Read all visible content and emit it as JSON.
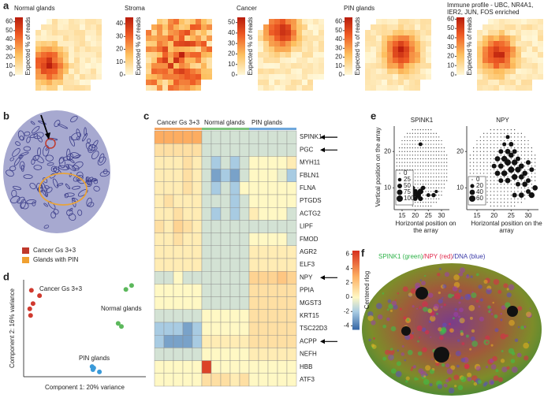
{
  "panel_labels": [
    "a",
    "b",
    "c",
    "d",
    "e",
    "f"
  ],
  "panel_a": {
    "colorbar_label": "Expected % of reads",
    "maps": [
      {
        "title": "Normal glands",
        "clim": [
          0,
          65
        ],
        "ticks": [
          0,
          10,
          20,
          30,
          40,
          50,
          60
        ]
      },
      {
        "title": "Stroma",
        "clim": [
          0,
          45
        ],
        "ticks": [
          0,
          10,
          20,
          30,
          40
        ]
      },
      {
        "title": "Cancer",
        "clim": [
          0,
          55
        ],
        "ticks": [
          0,
          10,
          20,
          30,
          40,
          50
        ]
      },
      {
        "title": "PIN glands",
        "clim": [
          0,
          65
        ],
        "ticks": [
          0,
          10,
          20,
          30,
          40,
          50,
          60
        ]
      },
      {
        "title": "Immune profile - UBC, NR4A1, IER2, JUN, FOS enriched",
        "clim": [
          0,
          62
        ],
        "ticks": [
          0,
          10,
          20,
          30,
          40,
          50,
          60
        ]
      }
    ]
  },
  "panel_b": {
    "legend": [
      {
        "label": "Cancer Gs 3+3",
        "color": "#c0392b"
      },
      {
        "label": "Glands with PIN",
        "color": "#f0a030"
      }
    ]
  },
  "panel_c": {
    "column_groups": [
      {
        "name": "Cancer Gs 3+3",
        "color": "#f4a460"
      },
      {
        "name": "Normal glands",
        "color": "#7cc47c"
      },
      {
        "name": "PIN glands",
        "color": "#6fa8dc"
      }
    ],
    "genes": [
      "SPINK1",
      "PGC",
      "MYH11",
      "FBLN1",
      "FLNA",
      "PTGDS",
      "ACTG2",
      "LIPF",
      "FMOD",
      "AGR2",
      "ELF3",
      "NPY",
      "PPIA",
      "MGST3",
      "KRT15",
      "TSC22D3",
      "ACPP",
      "NEFH",
      "HBB",
      "ATF3"
    ],
    "values": [
      [
        3,
        3,
        3,
        3,
        3,
        -1,
        -1,
        -1,
        -1,
        -1,
        -1,
        -1,
        -1,
        -1,
        -1
      ],
      [
        1,
        1,
        1,
        1,
        1,
        -1,
        -1,
        -1,
        -1,
        -1,
        -1,
        -1,
        -1,
        -1,
        -1
      ],
      [
        0.5,
        0.5,
        0.5,
        1,
        0.5,
        -1,
        -2,
        -1,
        -2,
        -1,
        0,
        0,
        0,
        0,
        0.5
      ],
      [
        0.5,
        0.5,
        0.5,
        1,
        0.5,
        -1,
        -3,
        -2,
        -3,
        -1,
        0,
        0,
        0,
        -0.5,
        -2
      ],
      [
        0.5,
        0.5,
        0.5,
        1,
        0.5,
        -1,
        -2,
        -1,
        -2,
        0,
        0,
        0,
        0,
        0,
        0
      ],
      [
        0.5,
        1,
        0.5,
        0.5,
        0.5,
        -1,
        -1,
        -1,
        -2,
        -1,
        0,
        0,
        0,
        0,
        0
      ],
      [
        0.5,
        0.5,
        1,
        0.5,
        0.5,
        -1,
        -2,
        -1,
        -2,
        -1,
        0.5,
        0,
        0,
        0,
        -1
      ],
      [
        1,
        0.5,
        1.5,
        1,
        0.5,
        -1,
        -1,
        -1,
        -1,
        -1,
        -1,
        -1,
        -1,
        -1,
        -1
      ],
      [
        0.5,
        0.5,
        1,
        0.5,
        0.5,
        -1,
        -1,
        -1,
        -1,
        -1,
        0,
        0,
        0,
        0,
        -1
      ],
      [
        0.5,
        0.5,
        0.5,
        0.5,
        0.5,
        -1,
        -1,
        -1,
        -1,
        -1,
        0.5,
        0.5,
        0.5,
        0.5,
        0.5
      ],
      [
        0.5,
        0.5,
        0.5,
        0.5,
        0.5,
        -1,
        -1,
        -1,
        -1,
        -1,
        0.5,
        0.5,
        0.5,
        0.5,
        0.5
      ],
      [
        -1,
        -1,
        0,
        -1,
        -1,
        -1,
        -1,
        -1,
        -1,
        -1,
        1.5,
        1.5,
        1.5,
        2,
        1.5
      ],
      [
        0,
        0,
        0,
        0,
        0,
        -1,
        -1,
        -1,
        -1,
        -1,
        1,
        1,
        1,
        1,
        1
      ],
      [
        0,
        0,
        0,
        0,
        0,
        -1,
        -1,
        -1,
        -1,
        -1,
        1,
        1,
        1,
        1,
        1
      ],
      [
        -1,
        -1,
        -1,
        -1,
        -1,
        0,
        0,
        0,
        0,
        0,
        1,
        1,
        1,
        1,
        1
      ],
      [
        -2,
        -2,
        -2,
        -3,
        -2,
        0,
        0,
        0,
        0,
        0,
        1,
        1,
        1,
        1,
        1
      ],
      [
        -2,
        -3,
        -3,
        -3,
        -2,
        0.5,
        0.5,
        0.5,
        0.5,
        0.5,
        1,
        1,
        1,
        1,
        1
      ],
      [
        -1,
        -1,
        -1,
        -1,
        -1,
        0,
        0,
        0,
        0,
        0,
        0.5,
        0.5,
        0.5,
        0.5,
        0.5
      ],
      [
        0,
        0,
        0,
        0,
        0,
        6,
        0,
        0,
        0,
        0,
        0,
        0,
        0,
        0,
        0
      ],
      [
        0,
        0,
        0,
        0,
        0,
        1,
        1,
        1,
        0.5,
        1,
        0,
        0,
        0,
        0,
        0
      ]
    ],
    "clim": [
      -4.5,
      6.5
    ],
    "colorbar_ticks": [
      -4,
      -2,
      0,
      2,
      4,
      6
    ],
    "colorbar_label": "Centered rlog"
  },
  "panel_d": {
    "type": "scatter",
    "xlabel": "Component 1: 20% variance",
    "ylabel": "Component 2: 16% variance",
    "xlim": [
      -14,
      16
    ],
    "ylim": [
      -8,
      14
    ],
    "series": [
      {
        "name": "Cancer Gs 3+3",
        "color": "#d03a2f",
        "x": [
          -12.1,
          -10.1,
          -11.7,
          -12.5,
          -12.3
        ],
        "y": [
          11.6,
          10.4,
          8.6,
          7.4,
          5.9
        ]
      },
      {
        "name": "Normal glands",
        "color": "#5cb85c",
        "x": [
          11.1,
          12.5,
          9.2,
          10.0
        ],
        "y": [
          11.8,
          12.7,
          4.1,
          3.4
        ]
      },
      {
        "name": "PIN glands",
        "color": "#3a9ad9",
        "x": [
          2.8,
          3.0,
          3.2,
          4.6
        ],
        "y": [
          -5.7,
          -6.4,
          -6.0,
          -6.9
        ]
      }
    ]
  },
  "panel_e": {
    "ylabel": "Vertical position on the array",
    "plots": [
      {
        "title": "SPINK1",
        "xlabel": "Horizontal position on the array",
        "xlim": [
          12,
          33
        ],
        "ylim": [
          27,
          4
        ],
        "xticks": [
          15,
          20,
          25,
          30
        ],
        "yticks": [
          10,
          20
        ],
        "size_legend": [
          0,
          25,
          50,
          75,
          100
        ],
        "x": [
          15,
          16,
          17,
          18,
          19,
          20,
          21,
          22,
          16,
          18,
          20,
          22,
          23,
          17,
          19,
          25,
          27,
          28,
          22,
          15,
          17
        ],
        "y": [
          8,
          7,
          8,
          7,
          8,
          7,
          8,
          9,
          9,
          9,
          9,
          7,
          10,
          10,
          10,
          8,
          8,
          9,
          22,
          10,
          6
        ],
        "size": [
          60,
          75,
          100,
          75,
          60,
          40,
          100,
          80,
          50,
          75,
          60,
          50,
          40,
          30,
          40,
          30,
          40,
          20,
          30,
          25,
          35
        ]
      },
      {
        "title": "NPY",
        "xlabel": "Horizontal position on the array",
        "xlim": [
          12,
          33
        ],
        "ylim": [
          27,
          4
        ],
        "xticks": [
          15,
          20,
          25,
          30
        ],
        "yticks": [
          10,
          20
        ],
        "size_legend": [
          0,
          20,
          40,
          60
        ],
        "x": [
          26,
          28,
          30,
          31,
          32,
          27,
          29,
          22,
          24,
          26,
          28,
          30,
          21,
          23,
          25,
          27,
          29,
          31,
          20,
          22,
          24,
          26,
          28,
          30,
          21,
          23,
          25,
          27,
          22,
          24,
          26,
          23,
          25,
          24
        ],
        "y": [
          8,
          8,
          9,
          8,
          10,
          11,
          11,
          12,
          12,
          13,
          13,
          12,
          14,
          14,
          15,
          15,
          14,
          15,
          16,
          16,
          17,
          17,
          16,
          17,
          18,
          18,
          19,
          18,
          20,
          20,
          20,
          22,
          22,
          24
        ],
        "size": [
          30,
          40,
          30,
          50,
          40,
          30,
          40,
          30,
          40,
          50,
          40,
          30,
          40,
          50,
          60,
          50,
          40,
          30,
          30,
          40,
          60,
          50,
          40,
          30,
          40,
          50,
          40,
          30,
          30,
          40,
          30,
          20,
          30,
          20
        ]
      }
    ]
  },
  "panel_f": {
    "title_parts": [
      {
        "text": "SPINK1 (green)",
        "color": "#2fb34a"
      },
      {
        "text": "/NPY (red)",
        "color": "#e0284b"
      },
      {
        "text": "/DNA (blue)",
        "color": "#3a3aa8"
      }
    ]
  }
}
